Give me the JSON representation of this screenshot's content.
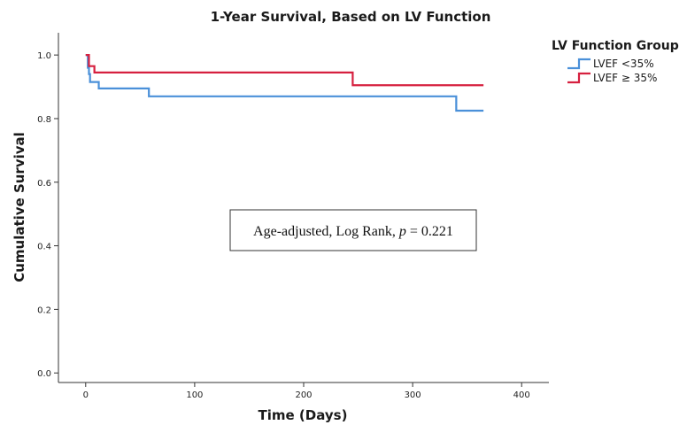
{
  "chart_data": {
    "type": "line",
    "subtype": "step",
    "title": "1-Year Survival, Based on LV Function",
    "xlabel": "Time (Days)",
    "ylabel": "Cumulative Survival",
    "xlim": [
      -25,
      425
    ],
    "ylim": [
      -0.03,
      1.07
    ],
    "xticks": [
      0,
      100,
      200,
      300,
      400
    ],
    "yticks": [
      0.0,
      0.2,
      0.4,
      0.6,
      0.8,
      1.0
    ],
    "xtick_labels": [
      "0",
      "100",
      "200",
      "300",
      "400"
    ],
    "ytick_labels": [
      "0.0",
      "0.2",
      "0.4",
      "0.6",
      "0.8",
      "1.0"
    ],
    "grid": false,
    "legend": {
      "title": "LV Function Group",
      "placement": "top-right, outside plot"
    },
    "series": [
      {
        "name": "LVEF <35%",
        "color": "#4a90d9",
        "x": [
          0,
          2,
          3,
          4,
          6,
          12,
          58,
          340,
          365
        ],
        "y": [
          1.0,
          0.96,
          0.94,
          0.915,
          0.915,
          0.895,
          0.87,
          0.825,
          0.825
        ]
      },
      {
        "name": "LVEF ≥ 35%",
        "color": "#d6203f",
        "x": [
          0,
          3,
          8,
          245,
          365
        ],
        "y": [
          1.0,
          0.965,
          0.945,
          0.905,
          0.905
        ]
      }
    ],
    "annotation": {
      "prefix": "Age-adjusted, Log Rank, ",
      "p_symbol": "p",
      "suffix": " = 0.221"
    }
  }
}
